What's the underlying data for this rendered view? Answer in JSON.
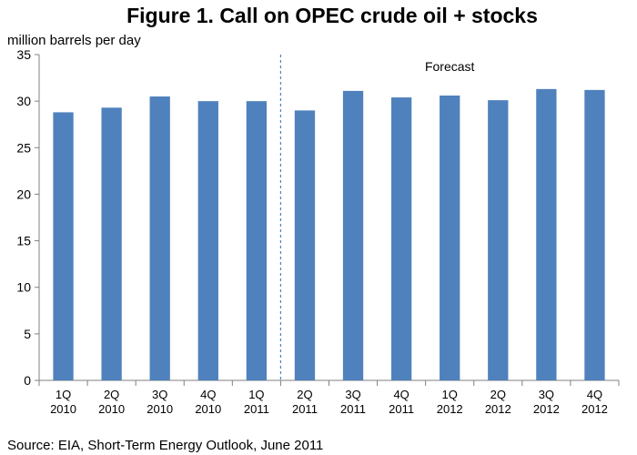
{
  "chart_data": {
    "type": "bar",
    "title": "Figure 1. Call on OPEC crude oil + stocks",
    "ylabel": "million barrels per day",
    "xlabel": "",
    "ylim": [
      0,
      35
    ],
    "yticks": [
      0,
      5,
      10,
      15,
      20,
      25,
      30,
      35
    ],
    "categories": [
      [
        "1Q",
        "2010"
      ],
      [
        "2Q",
        "2010"
      ],
      [
        "3Q",
        "2010"
      ],
      [
        "4Q",
        "2010"
      ],
      [
        "1Q",
        "2011"
      ],
      [
        "2Q",
        "2011"
      ],
      [
        "3Q",
        "2011"
      ],
      [
        "4Q",
        "2011"
      ],
      [
        "1Q",
        "2012"
      ],
      [
        "2Q",
        "2012"
      ],
      [
        "3Q",
        "2012"
      ],
      [
        "4Q",
        "2012"
      ]
    ],
    "series": [
      {
        "values": [
          28.8,
          29.3,
          30.5,
          30.0,
          30.0,
          29.0,
          31.1,
          30.4,
          30.6,
          30.1,
          31.3,
          31.2
        ],
        "color": "#4f81bd"
      }
    ],
    "forecast": {
      "label": "Forecast",
      "starts_before_category": "2Q 2011"
    },
    "grid": false,
    "legend": "none",
    "source": "Source: EIA, Short-Term Energy Outlook, June 2011"
  }
}
